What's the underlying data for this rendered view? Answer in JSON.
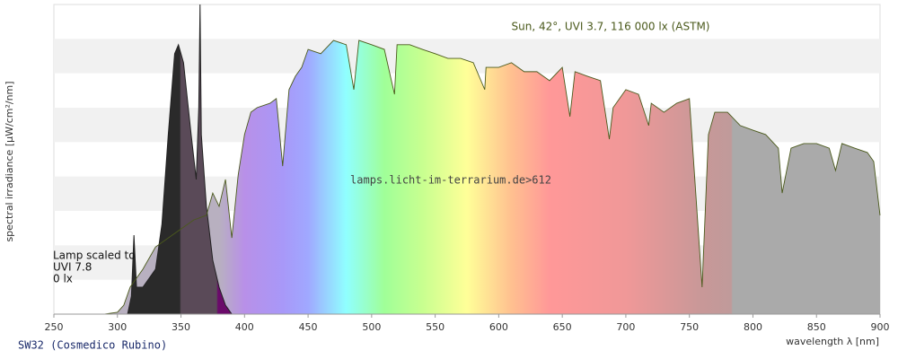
{
  "chart_data": {
    "type": "area",
    "annotation": "Sun, 42°, UVI 3.7, 116 000 lx (ASTM)",
    "watermark": "lamps.licht-im-terrarium.de>612",
    "lamp_notes": [
      "Lamp scaled to",
      "UVI 7.8",
      "0 lx"
    ],
    "caption": "SW32 (Cosmedico Rubino)",
    "x_label": "wavelength λ [nm]",
    "y_label": "spectral irradiance [µW/cm²/nm]",
    "xlim": [
      250,
      900
    ],
    "xticks": [
      250,
      300,
      350,
      400,
      450,
      500,
      550,
      600,
      650,
      700,
      750,
      800,
      850,
      900
    ],
    "ylim": [
      0,
      100
    ],
    "series": [
      {
        "name": "Sun",
        "color": "#4b5a1c",
        "x": [
          290,
          300,
          305,
          310,
          320,
          330,
          340,
          350,
          360,
          370,
          375,
          380,
          385,
          390,
          395,
          400,
          405,
          410,
          420,
          425,
          430,
          435,
          440,
          445,
          450,
          460,
          470,
          480,
          486,
          490,
          500,
          510,
          518,
          520,
          530,
          540,
          550,
          560,
          570,
          580,
          589,
          590,
          600,
          610,
          620,
          630,
          640,
          650,
          656,
          660,
          670,
          680,
          687,
          690,
          700,
          710,
          718,
          720,
          730,
          740,
          750,
          760,
          765,
          770,
          780,
          790,
          800,
          810,
          820,
          823,
          830,
          840,
          850,
          860,
          865,
          870,
          880,
          890,
          895,
          900
        ],
        "values": [
          0,
          0.6,
          2.9,
          8.7,
          14.5,
          21.7,
          24.6,
          27.5,
          30.4,
          31.9,
          39.1,
          34.8,
          43.5,
          24.6,
          44.9,
          58.0,
          65.2,
          66.7,
          68.1,
          69.6,
          47.8,
          72.5,
          76.8,
          79.7,
          85.5,
          84.1,
          88.4,
          87.0,
          72.5,
          88.4,
          87.0,
          85.5,
          71.0,
          87.0,
          87.0,
          85.5,
          84.1,
          82.6,
          82.6,
          81.2,
          72.5,
          79.7,
          79.7,
          81.2,
          78.3,
          78.3,
          75.4,
          79.7,
          63.8,
          78.3,
          76.8,
          75.4,
          56.5,
          66.7,
          72.5,
          71.0,
          60.9,
          68.1,
          65.2,
          68.1,
          69.6,
          8.7,
          58.0,
          65.2,
          65.2,
          60.9,
          59.4,
          58.0,
          53.6,
          39.1,
          53.6,
          55.1,
          55.1,
          53.6,
          46.4,
          55.1,
          53.6,
          52.2,
          49.3,
          31.9
        ]
      },
      {
        "name": "Lamp",
        "color": "#222222",
        "x": [
          300,
          308,
          311,
          313,
          315,
          320,
          330,
          335,
          340,
          345,
          348,
          352,
          358,
          362,
          364,
          365,
          366,
          370,
          375,
          380,
          385,
          390
        ],
        "values": [
          0,
          0,
          5.8,
          25.5,
          8.7,
          8.7,
          14.5,
          29.0,
          58.0,
          84.1,
          87.0,
          81.2,
          58.0,
          43.5,
          66.7,
          100,
          58.0,
          34.8,
          17.4,
          8.7,
          2.9,
          0
        ]
      }
    ]
  }
}
